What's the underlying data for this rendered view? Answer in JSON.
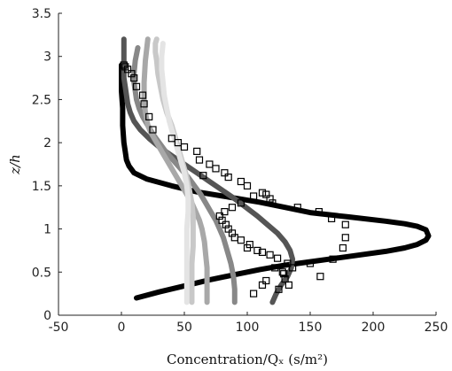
{
  "chart_data": {
    "type": "line",
    "xlabel": "Concentration/Q_x (s/m²)",
    "ylabel": "z/h",
    "xlim": [
      -50,
      250
    ],
    "ylim": [
      0,
      3.5
    ],
    "xticks": [
      -50,
      0,
      50,
      100,
      150,
      200,
      250
    ],
    "yticks": [
      0,
      0.5,
      1,
      1.5,
      2,
      2.5,
      3,
      3.5
    ],
    "grid": false,
    "series": [
      {
        "color": "#000000",
        "style": "line",
        "x": [
          12,
          30,
          50,
          70,
          90,
          110,
          130,
          150,
          170,
          190,
          210,
          225,
          235,
          242,
          244,
          242,
          235,
          225,
          210,
          180,
          150,
          130,
          110,
          85,
          60,
          40,
          20,
          10,
          6,
          4,
          3,
          2,
          1,
          1,
          0,
          0,
          0,
          0,
          0
        ],
        "y": [
          0.2,
          0.27,
          0.34,
          0.41,
          0.47,
          0.53,
          0.58,
          0.62,
          0.66,
          0.7,
          0.74,
          0.78,
          0.82,
          0.87,
          0.92,
          0.99,
          1.03,
          1.06,
          1.09,
          1.14,
          1.19,
          1.25,
          1.31,
          1.37,
          1.43,
          1.5,
          1.58,
          1.65,
          1.73,
          1.8,
          1.9,
          2.0,
          2.2,
          2.4,
          2.6,
          2.7,
          2.8,
          2.85,
          2.9
        ]
      },
      {
        "color": "#555555",
        "style": "line",
        "x": [
          120,
          123,
          127,
          132,
          135,
          136,
          134,
          130,
          124,
          116,
          108,
          99,
          90,
          80,
          70,
          60,
          50,
          40,
          30,
          22,
          15,
          10,
          7,
          5,
          4,
          3,
          2,
          2,
          2,
          2
        ],
        "y": [
          0.15,
          0.25,
          0.35,
          0.45,
          0.55,
          0.65,
          0.75,
          0.85,
          0.95,
          1.05,
          1.15,
          1.25,
          1.35,
          1.45,
          1.55,
          1.65,
          1.75,
          1.85,
          1.95,
          2.05,
          2.15,
          2.25,
          2.35,
          2.45,
          2.55,
          2.65,
          2.75,
          2.85,
          3.0,
          3.2
        ]
      },
      {
        "color": "#888888",
        "style": "line",
        "x": [
          90,
          90,
          89,
          87,
          84,
          81,
          78,
          75,
          71,
          67,
          63,
          58,
          53,
          47,
          41,
          35,
          30,
          25,
          21,
          17,
          14,
          12,
          11,
          10,
          10,
          11,
          13
        ],
        "y": [
          0.15,
          0.3,
          0.45,
          0.6,
          0.75,
          0.9,
          1.0,
          1.1,
          1.2,
          1.3,
          1.4,
          1.5,
          1.6,
          1.7,
          1.8,
          1.9,
          2.0,
          2.1,
          2.2,
          2.3,
          2.4,
          2.5,
          2.6,
          2.7,
          2.8,
          2.95,
          3.1
        ]
      },
      {
        "color": "#a8a8a8",
        "style": "line",
        "x": [
          68,
          68,
          68,
          67,
          66,
          64,
          62,
          59,
          56,
          52,
          48,
          44,
          40,
          36,
          32,
          28,
          24,
          21,
          19,
          18,
          18,
          19,
          21
        ],
        "y": [
          0.15,
          0.35,
          0.55,
          0.7,
          0.85,
          1.0,
          1.1,
          1.2,
          1.3,
          1.4,
          1.5,
          1.6,
          1.7,
          1.8,
          1.9,
          2.0,
          2.1,
          2.2,
          2.35,
          2.5,
          2.7,
          2.95,
          3.2
        ]
      },
      {
        "color": "#c8c8c8",
        "style": "line",
        "x": [
          56,
          56,
          56,
          57,
          57,
          57,
          56,
          54,
          52,
          49,
          46,
          43,
          40,
          36,
          33,
          31,
          29,
          28,
          27,
          27,
          28
        ],
        "y": [
          0.15,
          0.4,
          0.6,
          0.8,
          1.0,
          1.15,
          1.3,
          1.45,
          1.6,
          1.75,
          1.9,
          2.05,
          2.2,
          2.35,
          2.5,
          2.65,
          2.8,
          2.95,
          3.05,
          3.15,
          3.2
        ]
      },
      {
        "color": "#e4e4e4",
        "style": "line",
        "x": [
          52,
          52,
          52,
          52,
          52,
          53,
          53,
          52,
          50,
          47,
          44,
          41,
          38,
          36,
          34,
          33,
          32,
          32,
          33
        ],
        "y": [
          0.15,
          0.4,
          0.6,
          0.8,
          1.0,
          1.2,
          1.35,
          1.5,
          1.65,
          1.8,
          1.95,
          2.1,
          2.25,
          2.4,
          2.55,
          2.7,
          2.85,
          3.0,
          3.15
        ]
      },
      {
        "color": "#000000",
        "style": "markers",
        "x": [
          125,
          133,
          130,
          128,
          122,
          132,
          124,
          118,
          112,
          108,
          100,
          102,
          95,
          90,
          88,
          85,
          83,
          80,
          78,
          82,
          88,
          95,
          105,
          112,
          115,
          118,
          120,
          140,
          157,
          167,
          178,
          178,
          176,
          168,
          158,
          150,
          136,
          129,
          115,
          112,
          105,
          100,
          95,
          85,
          82,
          75,
          70,
          62,
          65,
          60,
          50,
          45,
          40,
          25,
          22,
          18,
          17,
          12,
          10,
          8,
          5,
          3,
          2
        ],
        "y": [
          0.3,
          0.35,
          0.42,
          0.5,
          0.55,
          0.6,
          0.66,
          0.7,
          0.73,
          0.75,
          0.78,
          0.82,
          0.87,
          0.9,
          0.95,
          1.0,
          1.05,
          1.1,
          1.15,
          1.2,
          1.25,
          1.3,
          1.38,
          1.42,
          1.4,
          1.35,
          1.3,
          1.25,
          1.2,
          1.12,
          1.05,
          0.9,
          0.78,
          0.65,
          0.45,
          0.6,
          0.55,
          0.48,
          0.4,
          0.35,
          0.25,
          1.5,
          1.55,
          1.6,
          1.65,
          1.7,
          1.75,
          1.8,
          1.62,
          1.9,
          1.95,
          2.0,
          2.05,
          2.15,
          2.3,
          2.45,
          2.55,
          2.65,
          2.75,
          2.8,
          2.85,
          2.88,
          2.9
        ]
      }
    ]
  }
}
